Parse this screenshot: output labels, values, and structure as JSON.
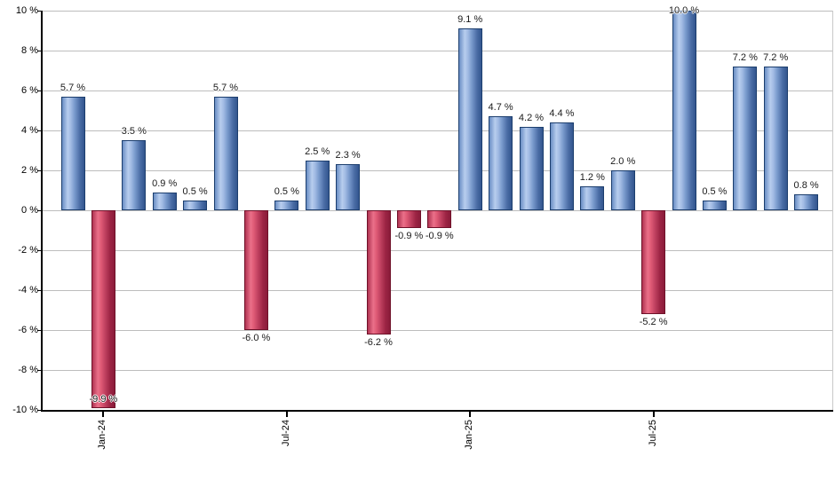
{
  "chart_data": {
    "type": "bar",
    "title": "",
    "xlabel": "",
    "ylabel": "",
    "ylim": [
      -10,
      10
    ],
    "y_tick_step": 2,
    "grid": true,
    "legend": "none",
    "values": [
      5.7,
      -9.9,
      3.5,
      0.9,
      0.5,
      5.7,
      -6.0,
      0.5,
      2.5,
      2.3,
      -6.2,
      -0.9,
      -0.9,
      9.1,
      4.7,
      4.2,
      4.4,
      1.2,
      2.0,
      -5.2,
      10.0,
      0.5,
      7.2,
      7.2,
      0.8
    ],
    "bar_labels": [
      "5.7 %",
      "-9.9 %",
      "3.5 %",
      "0.9 %",
      "0.5 %",
      "5.7 %",
      "-6.0 %",
      "0.5 %",
      "2.5 %",
      "2.3 %",
      "-6.2 %",
      "-0.9 %",
      "-0.9 %",
      "9.1 %",
      "4.7 %",
      "4.2 %",
      "4.4 %",
      "1.2 %",
      "2.0 %",
      "-5.2 %",
      "10.0 %",
      "0.5 %",
      "7.2 %",
      "7.2 %",
      "0.8 %"
    ],
    "y_tick_labels": [
      "10 %",
      "8 %",
      "6 %",
      "4 %",
      "2 %",
      "0 %",
      "-2 %",
      "-4 %",
      "-6 %",
      "-8 %",
      "-10 %"
    ],
    "y_tick_values": [
      10,
      8,
      6,
      4,
      2,
      0,
      -2,
      -4,
      -6,
      -8,
      -10
    ],
    "x_ticks": [
      {
        "index": 1,
        "label": "Jan-24"
      },
      {
        "index": 7,
        "label": "Jul-24"
      },
      {
        "index": 13,
        "label": "Jan-25"
      },
      {
        "index": 19,
        "label": "Jul-25"
      }
    ],
    "colors": {
      "positive_bar_light": "#b7cdee",
      "positive_bar_dark": "#33568e",
      "positive_bar_border": "#1c3e6e",
      "negative_bar_light": "#ea7089",
      "negative_bar_dark": "#8a1c3a",
      "negative_bar_border": "#6f1129",
      "gridline": "#bdbdbd",
      "axis": "#000000",
      "label_text": "#1a1a1a",
      "background": "#ffffff"
    }
  }
}
